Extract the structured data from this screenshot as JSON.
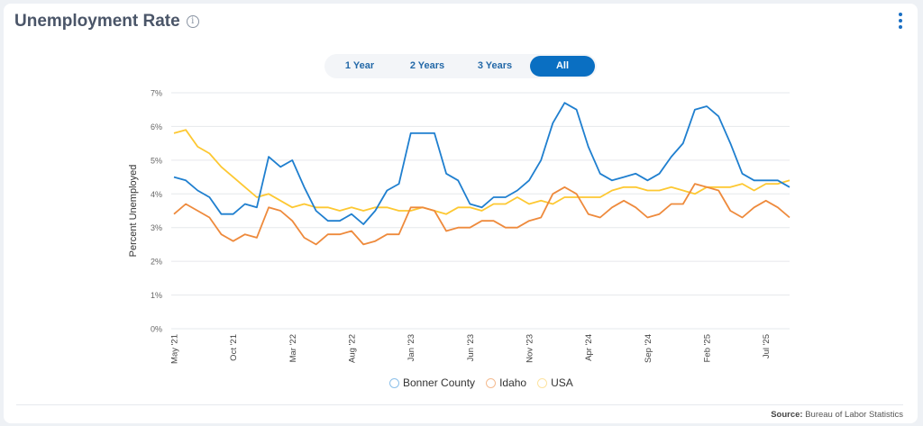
{
  "header": {
    "title": "Unemployment Rate",
    "info_icon": "info-icon",
    "menu_icon": "kebab-menu-icon"
  },
  "range_toggle": {
    "options": [
      "1 Year",
      "2 Years",
      "3 Years",
      "All"
    ],
    "selected": "All"
  },
  "footer": {
    "source_label": "Source:",
    "source_value": "Bureau of Labor Statistics"
  },
  "colors": {
    "accent": "#0a6fc2",
    "bonner": "#1f7fcf",
    "idaho": "#ee8a3c",
    "usa": "#fdc832"
  },
  "chart_data": {
    "type": "line",
    "ylabel": "Percent Unemployed",
    "xlabel": "",
    "ylim": [
      0,
      7
    ],
    "y_ticks": [
      "0%",
      "1%",
      "2%",
      "3%",
      "4%",
      "5%",
      "6%",
      "7%"
    ],
    "x_start": "May '21",
    "x_end": "Sep '25",
    "x_interval": "monthly",
    "x_tick_labels": [
      "May '21",
      "Oct '21",
      "Mar '22",
      "Aug '22",
      "Jan '23",
      "Jun '23",
      "Nov '23",
      "Apr '24",
      "Sep '24",
      "Feb '25",
      "Jul '25"
    ],
    "grid": true,
    "legend_position": "bottom",
    "series": [
      {
        "name": "Bonner County",
        "color": "#1f7fcf",
        "values": [
          4.5,
          4.4,
          4.1,
          3.9,
          3.4,
          3.4,
          3.7,
          3.6,
          5.1,
          4.8,
          5.0,
          4.2,
          3.5,
          3.2,
          3.2,
          3.4,
          3.1,
          3.5,
          4.1,
          4.3,
          5.8,
          5.8,
          5.8,
          4.6,
          4.4,
          3.7,
          3.6,
          3.9,
          3.9,
          4.1,
          4.4,
          5.0,
          6.1,
          6.7,
          6.5,
          5.4,
          4.6,
          4.4,
          4.5,
          4.6,
          4.4,
          4.6,
          5.1,
          5.5,
          6.5,
          6.6,
          6.3,
          5.5,
          4.6,
          4.4,
          4.4,
          4.4,
          4.2
        ]
      },
      {
        "name": "Idaho",
        "color": "#ee8a3c",
        "values": [
          3.4,
          3.7,
          3.5,
          3.3,
          2.8,
          2.6,
          2.8,
          2.7,
          3.6,
          3.5,
          3.2,
          2.7,
          2.5,
          2.8,
          2.8,
          2.9,
          2.5,
          2.6,
          2.8,
          2.8,
          3.6,
          3.6,
          3.5,
          2.9,
          3.0,
          3.0,
          3.2,
          3.2,
          3.0,
          3.0,
          3.2,
          3.3,
          4.0,
          4.2,
          4.0,
          3.4,
          3.3,
          3.6,
          3.8,
          3.6,
          3.3,
          3.4,
          3.7,
          3.7,
          4.3,
          4.2,
          4.1,
          3.5,
          3.3,
          3.6,
          3.8,
          3.6,
          3.3
        ]
      },
      {
        "name": "USA",
        "color": "#fdc832",
        "values": [
          5.8,
          5.9,
          5.4,
          5.2,
          4.8,
          4.5,
          4.2,
          3.9,
          4.0,
          3.8,
          3.6,
          3.7,
          3.6,
          3.6,
          3.5,
          3.6,
          3.5,
          3.6,
          3.6,
          3.5,
          3.5,
          3.6,
          3.5,
          3.4,
          3.6,
          3.6,
          3.5,
          3.7,
          3.7,
          3.9,
          3.7,
          3.8,
          3.7,
          3.9,
          3.9,
          3.9,
          3.9,
          4.1,
          4.2,
          4.2,
          4.1,
          4.1,
          4.2,
          4.1,
          4.0,
          4.2,
          4.2,
          4.2,
          4.3,
          4.1,
          4.3,
          4.3,
          4.4
        ]
      }
    ]
  }
}
